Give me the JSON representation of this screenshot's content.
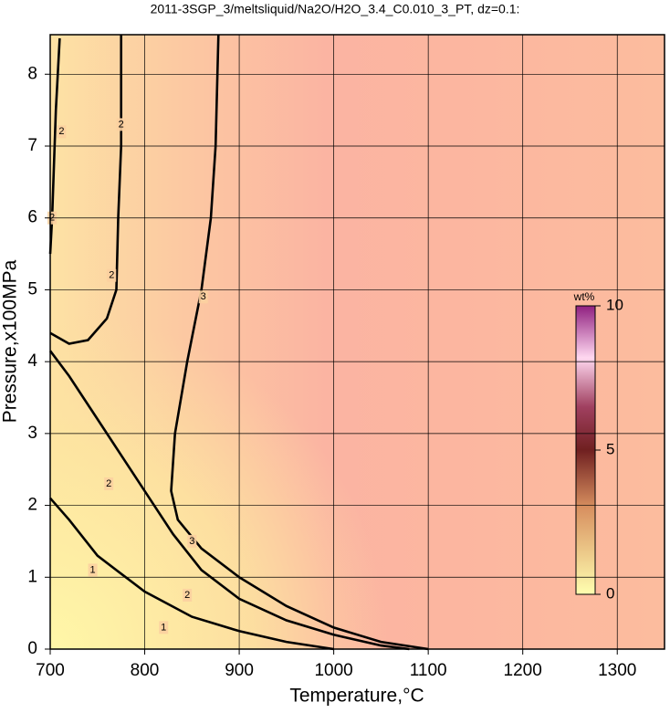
{
  "chart_data": {
    "type": "contour",
    "title": "2011-3SGP_3/meltsliquid/Na2O/H2O_3.4_C0.010_3_PT, dz=0.1:",
    "x_label": "Temperature,°C",
    "y_label": "Pressure,x100MPa",
    "xlim": [
      700,
      1350
    ],
    "ylim": [
      0,
      8.55
    ],
    "xticks": [
      700,
      800,
      900,
      1000,
      1100,
      1200,
      1300
    ],
    "yticks": [
      0,
      1,
      2,
      3,
      4,
      5,
      6,
      7,
      8
    ],
    "grid": true,
    "contours": [
      {
        "level": 1,
        "x": [
          700,
          720,
          750,
          780,
          800,
          850,
          900,
          950,
          1000
        ],
        "y": [
          2.1,
          1.8,
          1.3,
          1.0,
          0.8,
          0.45,
          0.25,
          0.1,
          0
        ],
        "label_x": [
          745,
          820
        ],
        "label_y": [
          1.1,
          0.3
        ]
      },
      {
        "level": 2,
        "x": [
          700,
          720,
          750,
          780,
          800,
          830,
          860,
          900,
          950,
          1000,
          1050,
          1080
        ],
        "y": [
          4.15,
          3.8,
          3.2,
          2.6,
          2.2,
          1.6,
          1.1,
          0.7,
          0.4,
          0.2,
          0.05,
          0
        ],
        "label_x": [
          762,
          845
        ],
        "label_y": [
          2.3,
          0.75
        ]
      },
      {
        "level": 2,
        "x": [
          700,
          720,
          740,
          760,
          770,
          772,
          775,
          775
        ],
        "y": [
          4.4,
          4.25,
          4.3,
          4.6,
          5.0,
          6.0,
          7.0,
          8.55
        ],
        "label_x": [
          765,
          775
        ],
        "label_y": [
          5.2,
          7.3
        ]
      },
      {
        "level": 2,
        "x": [
          710,
          706,
          702,
          700
        ],
        "y": [
          8.5,
          7.5,
          6.0,
          5.5
        ],
        "label_x": [
          712,
          702
        ],
        "label_y": [
          7.2,
          6.0
        ]
      },
      {
        "level": 3,
        "x": [
          878,
          875,
          870,
          860,
          845,
          832,
          828,
          835,
          860,
          900,
          950,
          1000,
          1050,
          1100
        ],
        "y": [
          8.55,
          7.0,
          6.0,
          5.0,
          4.0,
          3.0,
          2.2,
          1.8,
          1.4,
          1.0,
          0.6,
          0.3,
          0.1,
          0
        ],
        "label_x": [
          862,
          850
        ],
        "label_y": [
          4.9,
          1.5
        ]
      }
    ],
    "colorbar": {
      "label": "wt%",
      "lim": [
        0,
        10
      ],
      "ticks": [
        0,
        5,
        10
      ]
    }
  }
}
